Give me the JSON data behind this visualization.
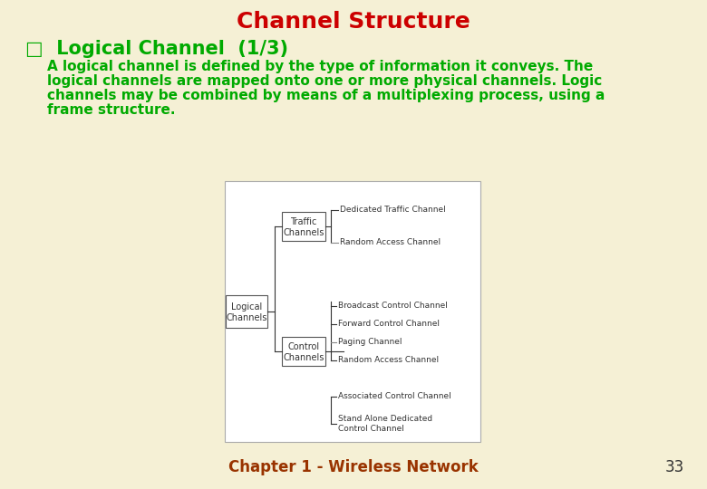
{
  "title": "Channel Structure",
  "title_color": "#cc0000",
  "title_fontsize": 18,
  "bg_color": "#f5f0d5",
  "bullet": "□",
  "section_title": "Logical Channel  (1/3)",
  "section_title_color": "#00aa00",
  "section_title_fontsize": 15,
  "body_lines": [
    "A logical channel is defined by the type of information it conveys. The",
    "logical channels are mapped onto one or more physical channels. Logic",
    "channels may be combined by means of a multiplexing process, using a",
    "frame structure."
  ],
  "body_color": "#00aa00",
  "body_fontsize": 11,
  "footer_text": "Chapter 1 - Wireless Network",
  "footer_color": "#993300",
  "footer_fontsize": 12,
  "page_number": "33",
  "page_number_color": "#333333",
  "diagram_fontsize": 7,
  "diagram_line_color": "#333333",
  "diagram_text_color": "#333333",
  "diagram_bg": "#ffffff",
  "diagram_border": "#aaaaaa"
}
